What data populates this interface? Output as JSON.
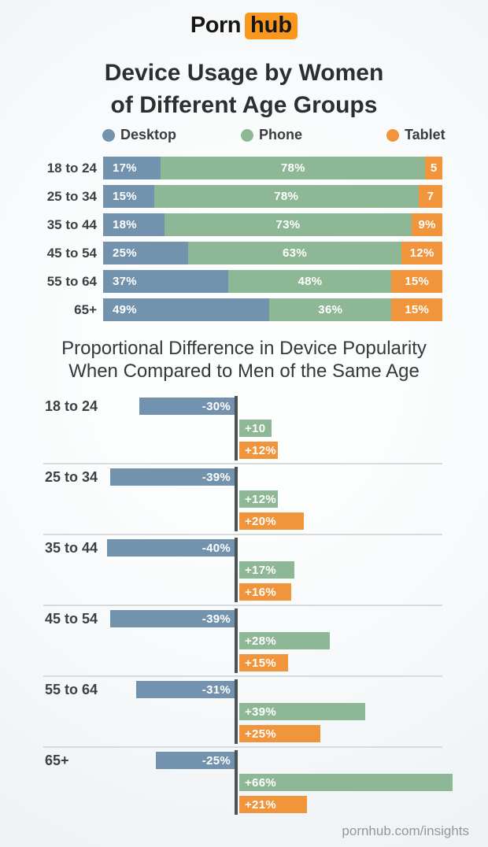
{
  "logo": {
    "part1": "Porn",
    "part2": "hub",
    "box_color": "#f7971d"
  },
  "title": {
    "line1": "Device Usage by Women",
    "line2": "of Different Age Groups"
  },
  "subtitle": {
    "line1": "Proportional Difference in Device Popularity",
    "line2": "When Compared to Men of the Same Age"
  },
  "legend": {
    "items": [
      {
        "label": "Desktop",
        "color": "#7392ae"
      },
      {
        "label": "Phone",
        "color": "#8eb795"
      },
      {
        "label": "Tablet",
        "color": "#f0953c"
      }
    ]
  },
  "footer": {
    "text": "pornhub.com/insights"
  },
  "colors": {
    "desktop": "#7392ae",
    "phone": "#8eb795",
    "tablet": "#f0953c",
    "zero_axis": "#4c5154",
    "divider": "#d7dbde",
    "title_text": "#2c2e30",
    "label_text": "#3d4043",
    "footer_text": "#8e99a1"
  },
  "chart_data": [
    {
      "type": "bar",
      "subtype": "stacked-horizontal",
      "title": "Device Usage by Women of Different Age Groups",
      "unit": "percent of device usage",
      "xlim": [
        0,
        100
      ],
      "grid": false,
      "legend_position": "top",
      "categories": [
        "18 to 24",
        "25 to 34",
        "35 to 44",
        "45 to 54",
        "55 to 64",
        "65+"
      ],
      "series": [
        {
          "name": "Desktop",
          "color": "#7392ae",
          "values": [
            17,
            15,
            18,
            25,
            37,
            49
          ],
          "labels": [
            "17%",
            "15%",
            "18%",
            "25%",
            "37%",
            "49%"
          ]
        },
        {
          "name": "Phone",
          "color": "#8eb795",
          "values": [
            78,
            78,
            73,
            63,
            48,
            36
          ],
          "labels": [
            "78%",
            "78%",
            "73%",
            "63%",
            "48%",
            "36%"
          ]
        },
        {
          "name": "Tablet",
          "color": "#f0953c",
          "values": [
            5,
            7,
            9,
            12,
            15,
            15
          ],
          "labels": [
            "5",
            "7",
            "9%",
            "12%",
            "15%",
            "15%"
          ]
        }
      ]
    },
    {
      "type": "bar",
      "subtype": "diverging-horizontal",
      "title": "Proportional Difference in Device Popularity When Compared to Men of the Same Age",
      "unit": "percent difference vs men",
      "grid": false,
      "zero_axis": true,
      "categories": [
        "18 to 24",
        "25 to 34",
        "35 to 44",
        "45 to 54",
        "55 to 64",
        "65+"
      ],
      "series": [
        {
          "name": "Desktop",
          "color": "#7392ae",
          "values": [
            -30,
            -39,
            -40,
            -39,
            -31,
            -25
          ],
          "labels": [
            "-30%",
            "-39%",
            "-40%",
            "-39%",
            "-31%",
            "-25%"
          ]
        },
        {
          "name": "Phone",
          "color": "#8eb795",
          "values": [
            10,
            12,
            17,
            28,
            39,
            66
          ],
          "labels": [
            "+10",
            "+12%",
            "+17%",
            "+28%",
            "+39%",
            "+66%"
          ]
        },
        {
          "name": "Tablet",
          "color": "#f0953c",
          "values": [
            12,
            20,
            16,
            15,
            25,
            21
          ],
          "labels": [
            "+12%",
            "+20%",
            "+16%",
            "+15%",
            "+25%",
            "+21%"
          ]
        }
      ]
    }
  ]
}
